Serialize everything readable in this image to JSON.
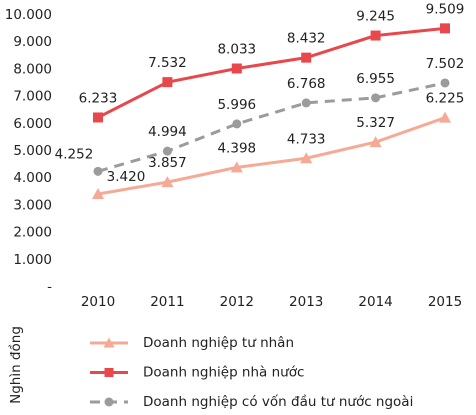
{
  "chart_data": {
    "type": "line",
    "y_label": "Nghìn đồng",
    "categories": [
      "2010",
      "2011",
      "2012",
      "2013",
      "2014",
      "2015"
    ],
    "ylim": [
      0,
      10000
    ],
    "yticks": [
      {
        "value": 0,
        "label": "-"
      },
      {
        "value": 1000,
        "label": "1.000"
      },
      {
        "value": 2000,
        "label": "2.000"
      },
      {
        "value": 3000,
        "label": "3.000"
      },
      {
        "value": 4000,
        "label": "4.000"
      },
      {
        "value": 5000,
        "label": "5.000"
      },
      {
        "value": 6000,
        "label": "6.000"
      },
      {
        "value": 7000,
        "label": "7.000"
      },
      {
        "value": 8000,
        "label": "8.000"
      },
      {
        "value": 9000,
        "label": "9.000"
      },
      {
        "value": 10000,
        "label": "10.000"
      }
    ],
    "grid": false,
    "series": [
      {
        "name": "Doanh nghiệp tư nhân",
        "color": "#f6a994",
        "marker": "triangle",
        "dashed": false,
        "values": [
          3420,
          3857,
          4398,
          4733,
          5327,
          6225
        ],
        "value_labels": [
          "3.420",
          "3.857",
          "4.398",
          "4.733",
          "5.327",
          "6.225"
        ]
      },
      {
        "name": "Doanh nghiệp nhà nước",
        "color": "#e8484b",
        "marker": "square",
        "dashed": false,
        "values": [
          6233,
          7532,
          8033,
          8432,
          9245,
          9509
        ],
        "value_labels": [
          "6.233",
          "7.532",
          "8.033",
          "8.432",
          "9.245",
          "9.509"
        ]
      },
      {
        "name": "Doanh nghiệp có vốn đầu tư nước ngoài",
        "color": "#9b9b9b",
        "marker": "circle",
        "dashed": true,
        "values": [
          4252,
          4994,
          5996,
          6768,
          6955,
          7502
        ],
        "value_labels": [
          "4.252",
          "4.994",
          "5.996",
          "6.768",
          "6.955",
          "7.502"
        ]
      }
    ]
  }
}
